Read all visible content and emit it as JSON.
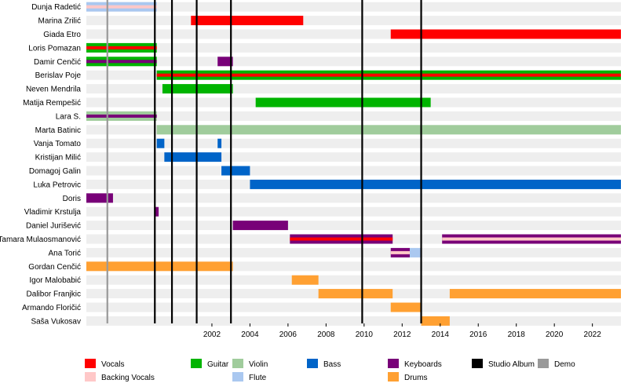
{
  "chart_data": {
    "type": "timeline",
    "title": "",
    "xlabel": "",
    "ylabel": "",
    "xlim": [
      1995.4,
      2023.5
    ],
    "x_ticks": [
      2002,
      2004,
      2006,
      2008,
      2010,
      2012,
      2014,
      2016,
      2018,
      2020,
      2022
    ],
    "grid": true,
    "legend_position": "bottom",
    "members": [
      "Dunja Radetić",
      "Marina Zrilić",
      "Giada Etro",
      "Loris Pomazan",
      "Damir Cenčić",
      "Berislav Poje",
      "Neven Mendrila",
      "Matija Rempešić",
      "Lara S.",
      "Marta Batinic",
      "Vanja Tomato",
      "Kristijan Milić",
      "Domagoj Galin",
      "Luka Petrovic",
      "Doris",
      "Vladimir Krstulja",
      "Daniel Jurišević",
      "Tamara Mulaosmanović",
      "Ana Torić",
      "Gordan Cenčić",
      "Igor Malobabić",
      "Dalibor Franjkic",
      "Armando Floričić",
      "Saša Vukosav"
    ],
    "roles": [
      {
        "key": "vocals",
        "name": "Vocals",
        "color": "#ff0000"
      },
      {
        "key": "backing",
        "name": "Backing Vocals",
        "color": "#ffc8c8"
      },
      {
        "key": "guitar",
        "name": "Guitar",
        "color": "#00b400"
      },
      {
        "key": "violin",
        "name": "Violin",
        "color": "#a0cc9c"
      },
      {
        "key": "flute",
        "name": "Flute",
        "color": "#aac8f0"
      },
      {
        "key": "bass",
        "name": "Bass",
        "color": "#0064c8"
      },
      {
        "key": "keyboards",
        "name": "Keyboards",
        "color": "#780078"
      },
      {
        "key": "drums",
        "name": "Drums",
        "color": "#ffa032"
      },
      {
        "key": "album",
        "name": "Studio Album",
        "color": "#000000"
      },
      {
        "key": "demo",
        "name": "Demo",
        "color": "#999999"
      }
    ],
    "bars": [
      {
        "row": 0,
        "start": 1995.4,
        "end": 1999.1,
        "role": "flute"
      },
      {
        "row": 0,
        "start": 1995.4,
        "end": 1999.1,
        "role": "backing",
        "stripe": true
      },
      {
        "row": 1,
        "start": 2000.9,
        "end": 2006.8,
        "role": "vocals"
      },
      {
        "row": 2,
        "start": 2011.4,
        "end": 2023.5,
        "role": "vocals"
      },
      {
        "row": 3,
        "start": 1995.4,
        "end": 1999.1,
        "role": "guitar"
      },
      {
        "row": 3,
        "start": 1995.4,
        "end": 1999.1,
        "role": "vocals",
        "stripe": true
      },
      {
        "row": 4,
        "start": 1995.4,
        "end": 1999.1,
        "role": "guitar"
      },
      {
        "row": 4,
        "start": 1995.4,
        "end": 1999.1,
        "role": "keyboards",
        "stripe": true
      },
      {
        "row": 4,
        "start": 2002.3,
        "end": 2003.1,
        "role": "keyboards"
      },
      {
        "row": 5,
        "start": 1999.1,
        "end": 2023.5,
        "role": "guitar"
      },
      {
        "row": 5,
        "start": 1999.1,
        "end": 2023.5,
        "role": "vocals",
        "stripe": true
      },
      {
        "row": 6,
        "start": 1999.4,
        "end": 2003.1,
        "role": "guitar"
      },
      {
        "row": 7,
        "start": 2004.3,
        "end": 2013.5,
        "role": "guitar"
      },
      {
        "row": 8,
        "start": 1995.4,
        "end": 1999.1,
        "role": "violin"
      },
      {
        "row": 8,
        "start": 1995.4,
        "end": 1999.1,
        "role": "keyboards",
        "stripe": true
      },
      {
        "row": 9,
        "start": 1999.1,
        "end": 2023.5,
        "role": "violin"
      },
      {
        "row": 10,
        "start": 1999.1,
        "end": 1999.5,
        "role": "bass"
      },
      {
        "row": 10,
        "start": 2002.3,
        "end": 2002.5,
        "role": "bass"
      },
      {
        "row": 11,
        "start": 1999.5,
        "end": 2002.5,
        "role": "bass"
      },
      {
        "row": 12,
        "start": 2002.5,
        "end": 2004.0,
        "role": "bass"
      },
      {
        "row": 13,
        "start": 2004.0,
        "end": 2023.5,
        "role": "bass"
      },
      {
        "row": 14,
        "start": 1995.4,
        "end": 1996.8,
        "role": "keyboards"
      },
      {
        "row": 15,
        "start": 1999.0,
        "end": 1999.2,
        "role": "keyboards"
      },
      {
        "row": 16,
        "start": 2003.1,
        "end": 2006.0,
        "role": "keyboards"
      },
      {
        "row": 17,
        "start": 2006.1,
        "end": 2011.5,
        "role": "keyboards"
      },
      {
        "row": 17,
        "start": 2006.1,
        "end": 2011.5,
        "role": "vocals",
        "stripe": true
      },
      {
        "row": 17,
        "start": 2014.1,
        "end": 2023.5,
        "role": "keyboards"
      },
      {
        "row": 17,
        "start": 2014.1,
        "end": 2023.5,
        "role": "backing",
        "stripe": true
      },
      {
        "row": 18,
        "start": 2011.4,
        "end": 2012.4,
        "role": "keyboards"
      },
      {
        "row": 18,
        "start": 2011.4,
        "end": 2012.4,
        "role": "backing",
        "stripe": true
      },
      {
        "row": 18,
        "start": 2012.4,
        "end": 2013.0,
        "role": "flute"
      },
      {
        "row": 19,
        "start": 1995.4,
        "end": 2003.1,
        "role": "drums"
      },
      {
        "row": 20,
        "start": 2006.2,
        "end": 2007.6,
        "role": "drums"
      },
      {
        "row": 21,
        "start": 2007.6,
        "end": 2011.5,
        "role": "drums"
      },
      {
        "row": 21,
        "start": 2014.5,
        "end": 2023.5,
        "role": "drums"
      },
      {
        "row": 22,
        "start": 2011.4,
        "end": 2013.0,
        "role": "drums"
      },
      {
        "row": 23,
        "start": 2013.0,
        "end": 2014.5,
        "role": "drums"
      }
    ],
    "studio_albums": [
      1999.0,
      1999.9,
      2001.2,
      2003.0,
      2009.9,
      2013.0
    ],
    "demos": [
      1996.5
    ],
    "legend_layout": [
      {
        "key": "vocals",
        "col": 0,
        "row": 0
      },
      {
        "key": "backing",
        "col": 0,
        "row": 1
      },
      {
        "key": "guitar",
        "col": 1,
        "row": 0
      },
      {
        "key": "violin",
        "col": 2,
        "row": 0
      },
      {
        "key": "flute",
        "col": 2,
        "row": 1
      },
      {
        "key": "bass",
        "col": 3,
        "row": 0
      },
      {
        "key": "keyboards",
        "col": 4,
        "row": 0
      },
      {
        "key": "drums",
        "col": 4,
        "row": 1
      },
      {
        "key": "album",
        "col": 5,
        "row": 0
      },
      {
        "key": "demo",
        "col": 6,
        "row": 0
      }
    ]
  }
}
